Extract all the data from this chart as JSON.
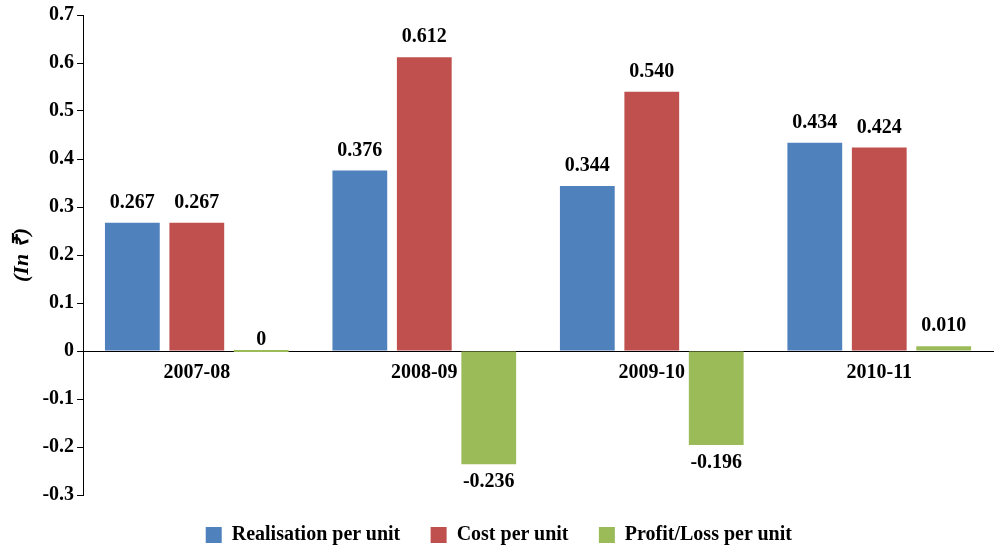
{
  "chart_data": {
    "type": "bar",
    "ylabel": "(In ₹)",
    "categories": [
      "2007-08",
      "2008-09",
      "2009-10",
      "2010-11"
    ],
    "series": [
      {
        "name": "Realisation per unit",
        "color": "#4f81bd",
        "values": [
          0.267,
          0.376,
          0.344,
          0.434
        ],
        "value_labels": [
          "0.267",
          "0.376",
          "0.344",
          "0.434"
        ]
      },
      {
        "name": "Cost per unit",
        "color": "#c0504d",
        "values": [
          0.267,
          0.612,
          0.54,
          0.424
        ],
        "value_labels": [
          "0.267",
          "0.612",
          "0.540",
          "0.424"
        ]
      },
      {
        "name": "Profit/Loss per unit",
        "color": "#9bbb59",
        "values": [
          0,
          -0.236,
          -0.196,
          0.01
        ],
        "value_labels": [
          "0",
          "-0.236",
          "-0.196",
          "0.010"
        ]
      }
    ],
    "ylim": [
      -0.3,
      0.7
    ],
    "yticks": [
      -0.3,
      -0.2,
      -0.1,
      0,
      0.1,
      0.2,
      0.3,
      0.4,
      0.5,
      0.6,
      0.7
    ],
    "grid": false,
    "legend": "bottom"
  }
}
